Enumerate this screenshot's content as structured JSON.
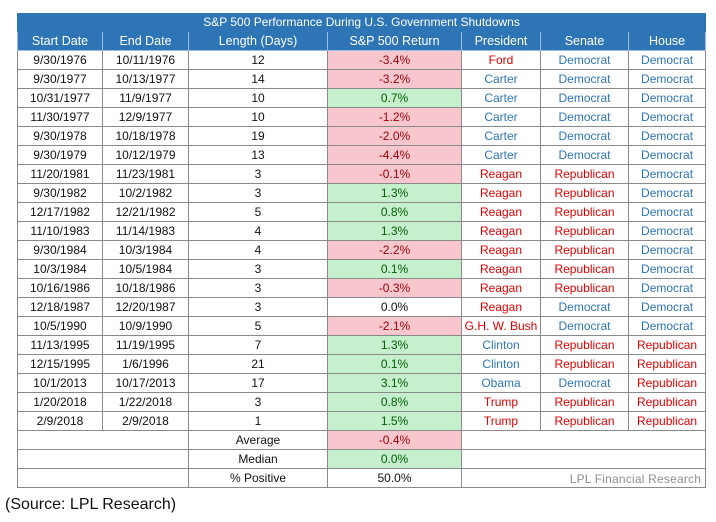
{
  "title": "S&P 500 Performance During U.S. Government Shutdowns",
  "headers": [
    "Start Date",
    "End Date",
    "Length (Days)",
    "S&P 500 Return",
    "President",
    "Senate",
    "House"
  ],
  "rows": [
    {
      "start": "9/30/1976",
      "end": "10/11/1976",
      "length": "12",
      "ret": "-3.4%",
      "sign": "neg",
      "president": "Ford",
      "president_party": "rep",
      "senate": "Democrat",
      "senate_party": "dem",
      "house": "Democrat",
      "house_party": "dem"
    },
    {
      "start": "9/30/1977",
      "end": "10/13/1977",
      "length": "14",
      "ret": "-3.2%",
      "sign": "neg",
      "president": "Carter",
      "president_party": "dem",
      "senate": "Democrat",
      "senate_party": "dem",
      "house": "Democrat",
      "house_party": "dem"
    },
    {
      "start": "10/31/1977",
      "end": "11/9/1977",
      "length": "10",
      "ret": "0.7%",
      "sign": "pos",
      "president": "Carter",
      "president_party": "dem",
      "senate": "Democrat",
      "senate_party": "dem",
      "house": "Democrat",
      "house_party": "dem"
    },
    {
      "start": "11/30/1977",
      "end": "12/9/1977",
      "length": "10",
      "ret": "-1.2%",
      "sign": "neg",
      "president": "Carter",
      "president_party": "dem",
      "senate": "Democrat",
      "senate_party": "dem",
      "house": "Democrat",
      "house_party": "dem"
    },
    {
      "start": "9/30/1978",
      "end": "10/18/1978",
      "length": "19",
      "ret": "-2.0%",
      "sign": "neg",
      "president": "Carter",
      "president_party": "dem",
      "senate": "Democrat",
      "senate_party": "dem",
      "house": "Democrat",
      "house_party": "dem"
    },
    {
      "start": "9/30/1979",
      "end": "10/12/1979",
      "length": "13",
      "ret": "-4.4%",
      "sign": "neg",
      "president": "Carter",
      "president_party": "dem",
      "senate": "Democrat",
      "senate_party": "dem",
      "house": "Democrat",
      "house_party": "dem"
    },
    {
      "start": "11/20/1981",
      "end": "11/23/1981",
      "length": "3",
      "ret": "-0.1%",
      "sign": "neg",
      "president": "Reagan",
      "president_party": "rep",
      "senate": "Republican",
      "senate_party": "rep",
      "house": "Democrat",
      "house_party": "dem"
    },
    {
      "start": "9/30/1982",
      "end": "10/2/1982",
      "length": "3",
      "ret": "1.3%",
      "sign": "pos",
      "president": "Reagan",
      "president_party": "rep",
      "senate": "Republican",
      "senate_party": "rep",
      "house": "Democrat",
      "house_party": "dem"
    },
    {
      "start": "12/17/1982",
      "end": "12/21/1982",
      "length": "5",
      "ret": "0.8%",
      "sign": "pos",
      "president": "Reagan",
      "president_party": "rep",
      "senate": "Republican",
      "senate_party": "rep",
      "house": "Democrat",
      "house_party": "dem"
    },
    {
      "start": "11/10/1983",
      "end": "11/14/1983",
      "length": "4",
      "ret": "1.3%",
      "sign": "pos",
      "president": "Reagan",
      "president_party": "rep",
      "senate": "Republican",
      "senate_party": "rep",
      "house": "Democrat",
      "house_party": "dem"
    },
    {
      "start": "9/30/1984",
      "end": "10/3/1984",
      "length": "4",
      "ret": "-2.2%",
      "sign": "neg",
      "president": "Reagan",
      "president_party": "rep",
      "senate": "Republican",
      "senate_party": "rep",
      "house": "Democrat",
      "house_party": "dem"
    },
    {
      "start": "10/3/1984",
      "end": "10/5/1984",
      "length": "3",
      "ret": "0.1%",
      "sign": "pos",
      "president": "Reagan",
      "president_party": "rep",
      "senate": "Republican",
      "senate_party": "rep",
      "house": "Democrat",
      "house_party": "dem"
    },
    {
      "start": "10/16/1986",
      "end": "10/18/1986",
      "length": "3",
      "ret": "-0.3%",
      "sign": "neg",
      "president": "Reagan",
      "president_party": "rep",
      "senate": "Republican",
      "senate_party": "rep",
      "house": "Democrat",
      "house_party": "dem"
    },
    {
      "start": "12/18/1987",
      "end": "12/20/1987",
      "length": "3",
      "ret": "0.0%",
      "sign": "zero",
      "president": "Reagan",
      "president_party": "rep",
      "senate": "Democrat",
      "senate_party": "dem",
      "house": "Democrat",
      "house_party": "dem"
    },
    {
      "start": "10/5/1990",
      "end": "10/9/1990",
      "length": "5",
      "ret": "-2.1%",
      "sign": "neg",
      "president": "G.H. W. Bush",
      "president_party": "rep",
      "senate": "Democrat",
      "senate_party": "dem",
      "house": "Democrat",
      "house_party": "dem"
    },
    {
      "start": "11/13/1995",
      "end": "11/19/1995",
      "length": "7",
      "ret": "1.3%",
      "sign": "pos",
      "president": "Clinton",
      "president_party": "dem",
      "senate": "Republican",
      "senate_party": "rep",
      "house": "Republican",
      "house_party": "rep"
    },
    {
      "start": "12/15/1995",
      "end": "1/6/1996",
      "length": "21",
      "ret": "0.1%",
      "sign": "pos",
      "president": "Clinton",
      "president_party": "dem",
      "senate": "Republican",
      "senate_party": "rep",
      "house": "Republican",
      "house_party": "rep"
    },
    {
      "start": "10/1/2013",
      "end": "10/17/2013",
      "length": "17",
      "ret": "3.1%",
      "sign": "pos",
      "president": "Obama",
      "president_party": "dem",
      "senate": "Democrat",
      "senate_party": "dem",
      "house": "Republican",
      "house_party": "rep"
    },
    {
      "start": "1/20/2018",
      "end": "1/22/2018",
      "length": "3",
      "ret": "0.8%",
      "sign": "pos",
      "president": "Trump",
      "president_party": "rep",
      "senate": "Republican",
      "senate_party": "rep",
      "house": "Republican",
      "house_party": "rep"
    },
    {
      "start": "2/9/2018",
      "end": "2/9/2018",
      "length": "1",
      "ret": "1.5%",
      "sign": "pos",
      "president": "Trump",
      "president_party": "rep",
      "senate": "Republican",
      "senate_party": "rep",
      "house": "Republican",
      "house_party": "rep"
    }
  ],
  "summary": [
    {
      "label": "Average",
      "value": "-0.4%",
      "sign": "neg"
    },
    {
      "label": "Median",
      "value": "0.0%",
      "sign": "pos"
    },
    {
      "label": "% Positive",
      "value": "50.0%",
      "sign": "zero"
    }
  ],
  "watermark": "LPL Financial Research",
  "source": "(Source: LPL Research)",
  "colors": {
    "header_blue": "#2e75b6",
    "negative_fill": "#f8c7ce",
    "negative_text": "#9c0006",
    "positive_fill": "#c6efce",
    "positive_text": "#006100",
    "democrat": "#2e75b6",
    "republican": "#e00000"
  }
}
